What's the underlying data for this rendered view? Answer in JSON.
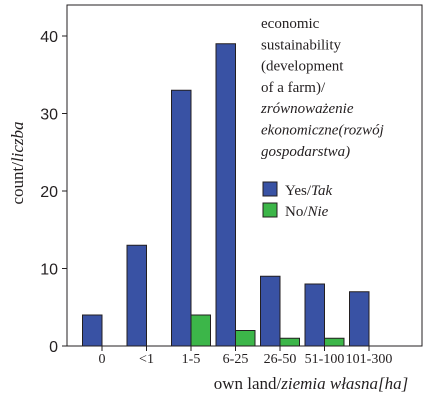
{
  "chart_data": {
    "type": "bar",
    "title": "",
    "xlabel": {
      "plain": "own land/",
      "italic": "ziemia własna[ha]"
    },
    "ylabel": {
      "plain": "count/",
      "italic": "liczba"
    },
    "ylim": [
      0,
      44
    ],
    "yticks": [
      0,
      10,
      20,
      30,
      40
    ],
    "categories": [
      "0",
      "<1",
      "1-5",
      "6-25",
      "26-50",
      "51-100",
      "101-300"
    ],
    "series": [
      {
        "name": "Yes/Tak",
        "name_plain": "Yes/",
        "name_italic": "Tak",
        "color": "#3952a4",
        "values": [
          4,
          13,
          33,
          39,
          9,
          8,
          7
        ]
      },
      {
        "name": "No/Nie",
        "name_plain": "No/",
        "name_italic": "Nie",
        "color": "#3cb649",
        "values": [
          0,
          0,
          4,
          2,
          1,
          1,
          0
        ]
      }
    ],
    "legend": {
      "placement": "top-right",
      "title_lines": [
        {
          "text": "economic",
          "italic": false
        },
        {
          "text": "sustainability",
          "italic": false
        },
        {
          "text": "(development",
          "italic": false
        },
        {
          "text": "of a farm)/",
          "italic": false
        },
        {
          "text": "zrównoważenie",
          "italic": true
        },
        {
          "text": "ekonomiczne(rozwój",
          "italic": true
        },
        {
          "text": "gospodarstwa)",
          "italic": true
        }
      ]
    },
    "grid": false
  }
}
